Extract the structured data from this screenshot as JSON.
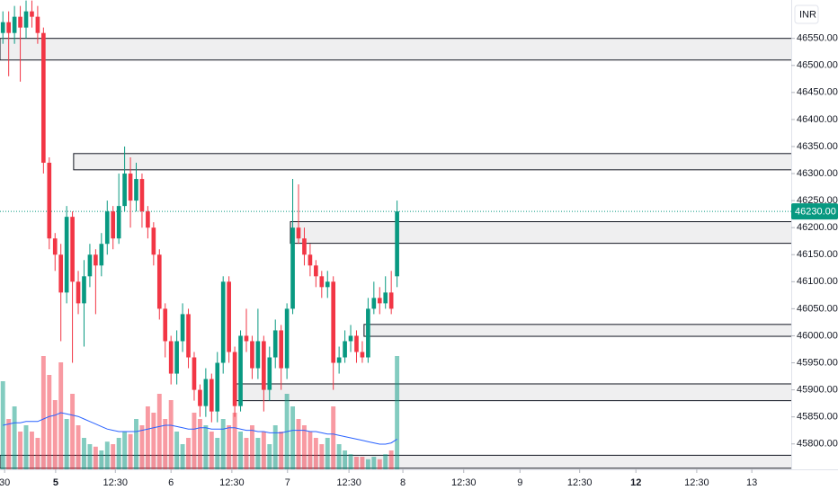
{
  "chart_data": {
    "type": "candlestick",
    "currency": "INR",
    "xlim": [
      -0.5,
      136
    ],
    "ylim": [
      45753,
      46621
    ],
    "yticks": [
      {
        "value": 45800,
        "label": "45800.00"
      },
      {
        "value": 45850,
        "label": "45850.00"
      },
      {
        "value": 45900,
        "label": "45900.00"
      },
      {
        "value": 45950,
        "label": "45950.00"
      },
      {
        "value": 46000,
        "label": "46000.00"
      },
      {
        "value": 46050,
        "label": "46050.00"
      },
      {
        "value": 46100,
        "label": "46100.00"
      },
      {
        "value": 46150,
        "label": "46150.00"
      },
      {
        "value": 46200,
        "label": "46200.00"
      },
      {
        "value": 46250,
        "label": "46250.00"
      },
      {
        "value": 46300,
        "label": "46300.00"
      },
      {
        "value": 46350,
        "label": "46350.00"
      },
      {
        "value": 46400,
        "label": "46400.00"
      },
      {
        "value": 46450,
        "label": "46450.00"
      },
      {
        "value": 46500,
        "label": "46500.00"
      },
      {
        "value": 46550,
        "label": "46550.00"
      }
    ],
    "xticks": [
      {
        "value": 0.3,
        "label": "30"
      },
      {
        "value": 9.1,
        "label": "5",
        "bold": true
      },
      {
        "value": 19.4,
        "label": "12:30"
      },
      {
        "value": 29,
        "label": "6"
      },
      {
        "value": 39.5,
        "label": "12:30"
      },
      {
        "value": 49.1,
        "label": "7"
      },
      {
        "value": 59.7,
        "label": "12:30"
      },
      {
        "value": 69,
        "label": "8"
      },
      {
        "value": 79.5,
        "label": "12:30"
      },
      {
        "value": 89.2,
        "label": "9"
      },
      {
        "value": 99.5,
        "label": "12:30"
      },
      {
        "value": 109.2,
        "label": "12",
        "bold": true
      },
      {
        "value": 119.7,
        "label": "12:30"
      },
      {
        "value": 129.2,
        "label": "13"
      }
    ],
    "up_color": "#089981",
    "down_color": "#f23645",
    "ma_color": "#2962ff",
    "open": [
      46560,
      46580,
      46560,
      46590,
      46570,
      46600,
      46590,
      46560,
      46320,
      46180,
      46150,
      46080,
      46220,
      46100,
      46060,
      46110,
      46150,
      46130,
      46170,
      46230,
      46180,
      46240,
      46300,
      46250,
      46290,
      46230,
      46200,
      46150,
      46050,
      45990,
      45930,
      45990,
      46040,
      45960,
      45900,
      45870,
      45920,
      45860,
      45950,
      46100,
      45970,
      45870,
      46000,
      45990,
      45940,
      45990,
      45900,
      45960,
      46010,
      45940,
      46050,
      46200,
      46180,
      46150,
      46130,
      46110,
      46090,
      46100,
      45950,
      45960,
      45990,
      46000,
      45970,
      45960,
      46050,
      46070,
      46060,
      46080,
      46110
    ],
    "high": [
      46600,
      46600,
      46610,
      46610,
      46620,
      46620,
      46610,
      46570,
      46330,
      46190,
      46170,
      46240,
      46230,
      46120,
      46140,
      46170,
      46160,
      46190,
      46250,
      46240,
      46300,
      46350,
      46330,
      46320,
      46300,
      46240,
      46210,
      46160,
      46060,
      46000,
      46010,
      46060,
      46050,
      45970,
      45910,
      45940,
      45930,
      45970,
      46110,
      46110,
      45980,
      46010,
      46050,
      46000,
      46050,
      46000,
      45980,
      46030,
      46020,
      46060,
      46290,
      46280,
      46200,
      46170,
      46140,
      46120,
      46120,
      46110,
      45980,
      46010,
      46020,
      46010,
      45990,
      46070,
      46100,
      46090,
      46110,
      46120,
      46250
    ],
    "low": [
      46540,
      46480,
      46540,
      46470,
      46550,
      46570,
      46540,
      46300,
      46160,
      46120,
      45990,
      46060,
      45950,
      46040,
      45980,
      46090,
      46040,
      46110,
      46150,
      46160,
      46170,
      46230,
      46200,
      46230,
      46200,
      46180,
      46130,
      46030,
      45960,
      45910,
      45910,
      45970,
      45940,
      45880,
      45850,
      45850,
      45840,
      45840,
      45930,
      45950,
      45850,
      45860,
      45970,
      45920,
      45920,
      45860,
      45880,
      45940,
      45900,
      45920,
      46040,
      46170,
      46130,
      46110,
      46090,
      46070,
      46070,
      45900,
      45930,
      45950,
      45970,
      45950,
      45950,
      45950,
      46040,
      46040,
      46050,
      46040,
      46090
    ],
    "close": [
      46580,
      46560,
      46590,
      46570,
      46600,
      46590,
      46560,
      46320,
      46180,
      46150,
      46080,
      46220,
      46100,
      46060,
      46110,
      46150,
      46130,
      46170,
      46230,
      46180,
      46240,
      46300,
      46250,
      46290,
      46230,
      46200,
      46150,
      46050,
      45990,
      45930,
      45990,
      46040,
      45960,
      45900,
      45870,
      45920,
      45860,
      45950,
      46100,
      45970,
      45870,
      46000,
      45990,
      45940,
      45990,
      45900,
      45960,
      46010,
      45940,
      46050,
      46200,
      46180,
      46150,
      46130,
      46110,
      46090,
      46100,
      45950,
      45960,
      45990,
      46000,
      45970,
      45960,
      46050,
      46070,
      46060,
      46080,
      46050,
      46230
    ],
    "volume_lim": [
      0,
      100
    ],
    "volume": [
      70,
      40,
      50,
      30,
      35,
      30,
      25,
      90,
      75,
      55,
      85,
      40,
      60,
      35,
      25,
      20,
      18,
      15,
      22,
      20,
      25,
      30,
      28,
      40,
      35,
      50,
      45,
      60,
      40,
      55,
      30,
      20,
      25,
      45,
      40,
      35,
      30,
      25,
      40,
      35,
      45,
      30,
      25,
      35,
      25,
      30,
      20,
      35,
      30,
      60,
      50,
      40,
      35,
      30,
      25,
      20,
      25,
      50,
      20,
      15,
      12,
      10,
      10,
      8,
      10,
      8,
      12,
      15,
      90
    ],
    "volume_ma": [
      35,
      36,
      37,
      37,
      38,
      38,
      38,
      40,
      42,
      43,
      45,
      44,
      43,
      42,
      40,
      38,
      36,
      34,
      32,
      31,
      30,
      30,
      30,
      30,
      31,
      32,
      33,
      34,
      35,
      35,
      34,
      33,
      32,
      32,
      33,
      33,
      32,
      32,
      32,
      33,
      33,
      32,
      31,
      31,
      30,
      30,
      29,
      29,
      29,
      30,
      31,
      31,
      31,
      30,
      30,
      29,
      28,
      28,
      27,
      26,
      25,
      24,
      23,
      22,
      21,
      20,
      20,
      21,
      24
    ],
    "zones": [
      {
        "from": -0.5,
        "top": 46550,
        "bottom": 46510
      },
      {
        "from": 12.2,
        "top": 46337,
        "bottom": 46307
      },
      {
        "from": 49.6,
        "top": 46211,
        "bottom": 46171
      },
      {
        "from": 62.3,
        "top": 46021,
        "bottom": 45999
      },
      {
        "from": 40.3,
        "top": 45911,
        "bottom": 45880
      },
      {
        "from": -0.5,
        "top": 45779,
        "bottom": 45755
      }
    ],
    "last_price": {
      "value": 46230,
      "label": "46230.00"
    }
  }
}
